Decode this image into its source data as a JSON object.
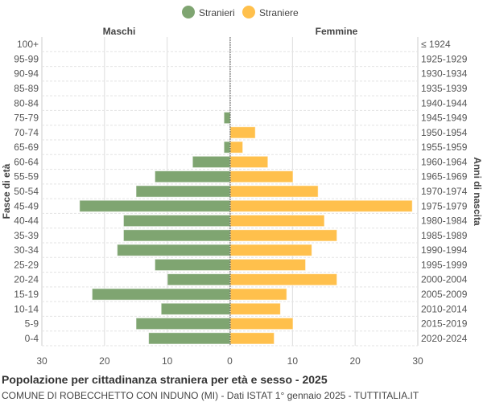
{
  "chart_data": {
    "type": "bar",
    "orientation": "horizontal-pyramid",
    "title": "Popolazione per cittadinanza straniera per età e sesso - 2025",
    "subtitle": "COMUNE DI ROBECCHETTO CON INDUNO (MI) - Dati ISTAT 1° gennaio 2025 - TUTTITALIA.IT",
    "left_header": "Maschi",
    "right_header": "Femmine",
    "ylabel_left": "Fasce di età",
    "ylabel_right": "Anni di nascita",
    "legend": [
      {
        "name": "Stranieri",
        "color": "#7fa571"
      },
      {
        "name": "Straniere",
        "color": "#ffc04c"
      }
    ],
    "legend_position": "top",
    "xlim": [
      -30,
      30
    ],
    "x_ticks": [
      "30",
      "20",
      "10",
      "0",
      "10",
      "20",
      "30"
    ],
    "categories": [
      "100+",
      "95-99",
      "90-94",
      "85-89",
      "80-84",
      "75-79",
      "70-74",
      "65-69",
      "60-64",
      "55-59",
      "50-54",
      "45-49",
      "40-44",
      "35-39",
      "30-34",
      "25-29",
      "20-24",
      "15-19",
      "10-14",
      "5-9",
      "0-4"
    ],
    "birth_years": [
      "≤ 1924",
      "1925-1929",
      "1930-1934",
      "1935-1939",
      "1940-1944",
      "1945-1949",
      "1950-1954",
      "1955-1959",
      "1960-1964",
      "1965-1969",
      "1970-1974",
      "1975-1979",
      "1980-1984",
      "1985-1989",
      "1990-1994",
      "1995-1999",
      "2000-2004",
      "2005-2009",
      "2010-2014",
      "2015-2019",
      "2020-2024"
    ],
    "series": [
      {
        "name": "Stranieri",
        "values": [
          0,
          0,
          0,
          0,
          0,
          1,
          0,
          1,
          6,
          12,
          15,
          24,
          17,
          17,
          18,
          12,
          10,
          22,
          11,
          15,
          13
        ]
      },
      {
        "name": "Straniere",
        "values": [
          0,
          0,
          0,
          0,
          0,
          0,
          4,
          2,
          6,
          10,
          14,
          29,
          15,
          17,
          13,
          12,
          17,
          9,
          8,
          10,
          7
        ]
      }
    ],
    "grid": true
  }
}
